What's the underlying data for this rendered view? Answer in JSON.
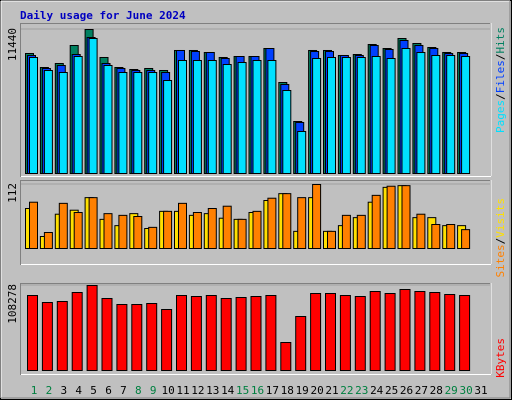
{
  "chart_data": [
    {
      "type": "bar",
      "title": "Daily usage for June 2024",
      "categories": [
        "1",
        "2",
        "3",
        "4",
        "5",
        "6",
        "7",
        "8",
        "9",
        "10",
        "11",
        "12",
        "13",
        "14",
        "15",
        "16",
        "17",
        "18",
        "19",
        "20",
        "21",
        "22",
        "23",
        "24",
        "25",
        "26",
        "27",
        "28",
        "29",
        "30",
        "31"
      ],
      "weekend_categories": [
        0,
        1,
        7,
        8,
        14,
        15,
        21,
        22,
        28,
        29
      ],
      "weekend_color": "#008040",
      "weekday_color": "#000000",
      "legend_separator": "/",
      "ylim": [
        0,
        11440
      ],
      "yticks": [
        11440
      ],
      "series": [
        {
          "name": "Pages",
          "color": "#00E0FF",
          "values": [
            9215,
            8183,
            8024,
            9295,
            10725,
            8580,
            8024,
            8024,
            8024,
            7388,
            8977,
            8977,
            8977,
            8659,
            8818,
            8977,
            8977,
            6594,
            3337,
            9136,
            9215,
            9215,
            9215,
            9295,
            9136,
            9930,
            9612,
            9374,
            9374,
            9295,
            null
          ]
        },
        {
          "name": "Files",
          "color": "#0040FF",
          "values": [
            9374,
            8342,
            8580,
            9454,
            10804,
            8739,
            8342,
            8183,
            8183,
            8024,
            9772,
            9692,
            9613,
            9136,
            9295,
            9295,
            9930,
            7070,
            4051,
            9692,
            9692,
            9374,
            9374,
            10169,
            9851,
            10566,
            10169,
            9930,
            9533,
            9533,
            null
          ]
        },
        {
          "name": "Hits",
          "color": "#008060",
          "values": [
            9533,
            8421,
            8739,
            10169,
            11440,
            9216,
            8421,
            8262,
            8342,
            8183,
            9772,
            9772,
            9613,
            9216,
            9295,
            9295,
            9930,
            7229,
            4131,
            9772,
            9772,
            9375,
            9454,
            10248,
            9930,
            10725,
            10328,
            10010,
            9613,
            9613,
            null
          ]
        }
      ]
    },
    {
      "type": "bar",
      "legend_separator": "/",
      "ylim": [
        0,
        112
      ],
      "yticks": [
        112
      ],
      "series": [
        {
          "name": "Sites",
          "color": "#FF8000",
          "values": [
            81,
            28,
            79,
            63,
            89,
            61,
            58,
            56,
            37,
            65,
            79,
            63,
            70,
            74,
            51,
            65,
            88,
            96,
            89,
            112,
            30,
            58,
            58,
            93,
            109,
            110,
            60,
            42,
            42,
            33,
            null
          ]
        },
        {
          "name": "Visits",
          "color": "#FFE000",
          "values": [
            70,
            21,
            60,
            67,
            89,
            51,
            40,
            61,
            35,
            65,
            65,
            58,
            61,
            53,
            51,
            63,
            84,
            96,
            30,
            89,
            30,
            40,
            54,
            81,
            107,
            110,
            54,
            54,
            40,
            40,
            null
          ]
        }
      ]
    },
    {
      "type": "bar",
      "ylim": [
        0,
        108278
      ],
      "yticks": [
        108278
      ],
      "series": [
        {
          "name": "KBytes",
          "color": "#FF0000",
          "values": [
            95539,
            86623,
            87897,
            99362,
            108278,
            91709,
            84075,
            84075,
            85349,
            77706,
            95539,
            94265,
            95539,
            91716,
            92990,
            94265,
            95539,
            35669,
            68789,
            98088,
            98088,
            95539,
            94265,
            100636,
            98088,
            103183,
            100636,
            99362,
            96814,
            95539,
            null
          ]
        }
      ]
    }
  ]
}
